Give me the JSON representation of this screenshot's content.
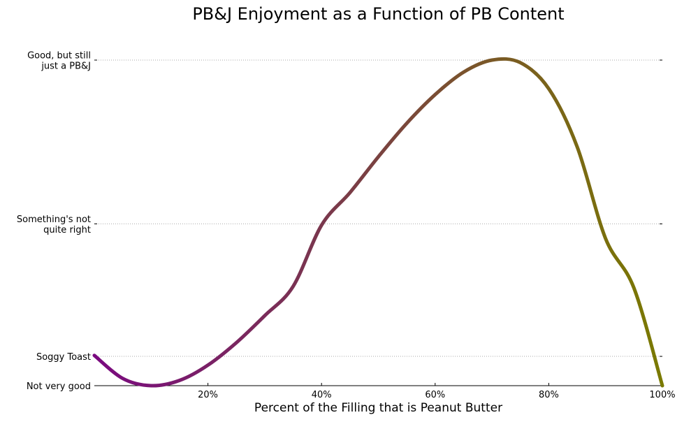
{
  "chart_data": {
    "type": "line",
    "title": "PB&J Enjoyment as a Function of PB Content",
    "xlabel": "Percent of the Filling that is Peanut Butter",
    "ylabel": "",
    "xlim": [
      0,
      100
    ],
    "ylim": [
      0,
      1
    ],
    "x_ticks": [
      {
        "value": 20,
        "label": "20%"
      },
      {
        "value": 40,
        "label": "40%"
      },
      {
        "value": 60,
        "label": "60%"
      },
      {
        "value": 80,
        "label": "80%"
      },
      {
        "value": 100,
        "label": "100%"
      }
    ],
    "y_ticks": [
      {
        "value": 0,
        "label": "Not very good",
        "grid": false
      },
      {
        "value": 0.09,
        "label": "Soggy Toast",
        "grid": true
      },
      {
        "value": 0.497,
        "label": "Something's not quite right",
        "grid": true
      },
      {
        "value": 1.0,
        "label": "Good, but still just a PB&J",
        "grid": true
      }
    ],
    "grid": "y-dotted",
    "series": [
      {
        "color_start": "#7a0a80",
        "color_end": "#7a7a00",
        "x": [
          0,
          5,
          10,
          15,
          20,
          25,
          30,
          35,
          40,
          45,
          50,
          55,
          60,
          65,
          70,
          75,
          80,
          85,
          90,
          95,
          100
        ],
        "y": [
          0.093,
          0.022,
          0.0,
          0.016,
          0.063,
          0.132,
          0.215,
          0.305,
          0.493,
          0.593,
          0.703,
          0.806,
          0.894,
          0.963,
          1.0,
          0.992,
          0.912,
          0.734,
          0.452,
          0.3,
          0.0
        ]
      }
    ]
  }
}
